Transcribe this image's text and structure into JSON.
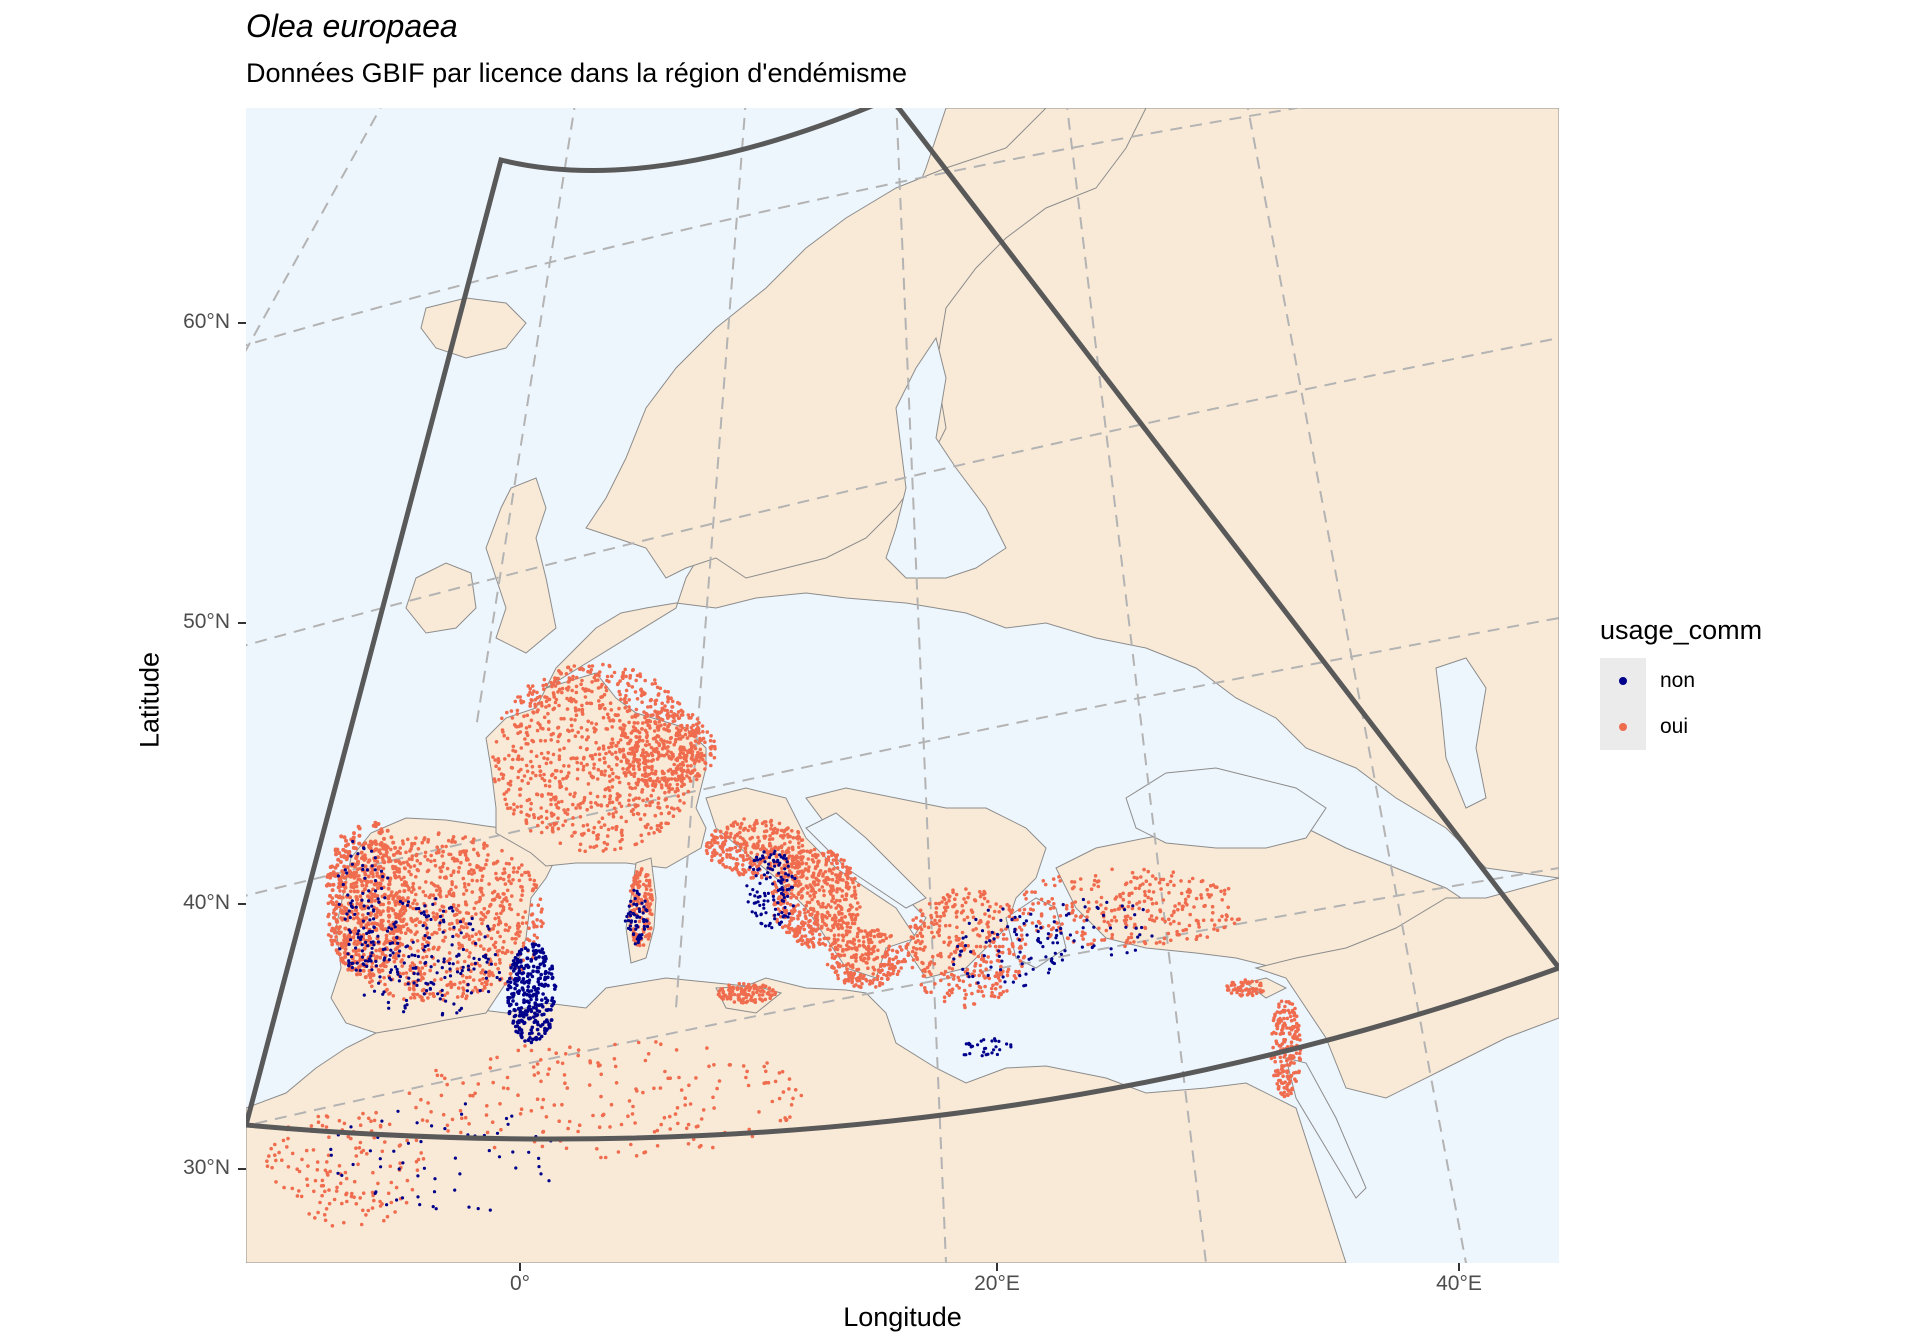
{
  "title": "Olea europaea",
  "subtitle": "Données GBIF par licence dans la région d'endémisme",
  "xlabel": "Longitude",
  "ylabel": "Latitude",
  "y_ticks": [
    "60°N",
    "50°N",
    "40°N",
    "30°N"
  ],
  "x_ticks": [
    "0°",
    "20°E",
    "40°E"
  ],
  "legend": {
    "title": "usage_comm",
    "items": [
      {
        "label": "non",
        "color": "#00008b"
      },
      {
        "label": "oui",
        "color": "#f06c4f"
      }
    ]
  },
  "colors": {
    "sea": "#eef6fd",
    "land": "#f9ead7",
    "border": "#8c8c8c",
    "graticule": "#b3b3b3",
    "extent_outline": "#595959"
  },
  "map_data": {
    "species": "Olea europaea",
    "endemism_extent": {
      "lon": [
        -10,
        40
      ],
      "lat": [
        28,
        62
      ]
    },
    "occurrence_regions": [
      {
        "region": "Iberian Peninsula",
        "license_groups": [
          "oui",
          "non"
        ]
      },
      {
        "region": "France",
        "license_groups": [
          "oui"
        ]
      },
      {
        "region": "Italy",
        "license_groups": [
          "oui",
          "non"
        ]
      },
      {
        "region": "Corsica / Sardinia",
        "license_groups": [
          "oui",
          "non"
        ]
      },
      {
        "region": "Balkans / Greece",
        "license_groups": [
          "oui",
          "non"
        ]
      },
      {
        "region": "Turkey",
        "license_groups": [
          "oui",
          "non"
        ]
      },
      {
        "region": "Levant",
        "license_groups": [
          "oui"
        ]
      },
      {
        "region": "North Africa",
        "license_groups": [
          "oui",
          "non"
        ]
      },
      {
        "region": "Cyprus",
        "license_groups": [
          "oui",
          "non"
        ]
      }
    ]
  }
}
